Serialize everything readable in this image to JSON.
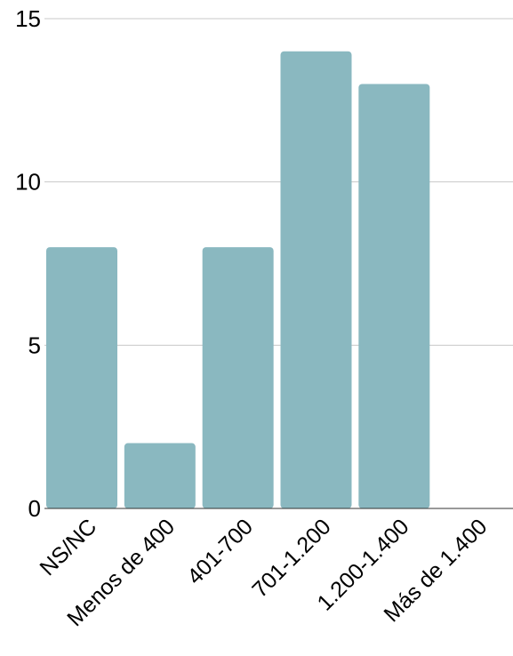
{
  "chart_data": {
    "type": "bar",
    "categories": [
      "NS/NC",
      "Menos de 400",
      "401-700",
      "701-1.200",
      "1.200-1.400",
      "Más de 1.400"
    ],
    "values": [
      8,
      2,
      8,
      14,
      13,
      0
    ],
    "ylim": [
      0,
      15
    ],
    "yticks": [
      0,
      5,
      10,
      15
    ],
    "grid": true,
    "bar_color": "#8ab8c0"
  }
}
